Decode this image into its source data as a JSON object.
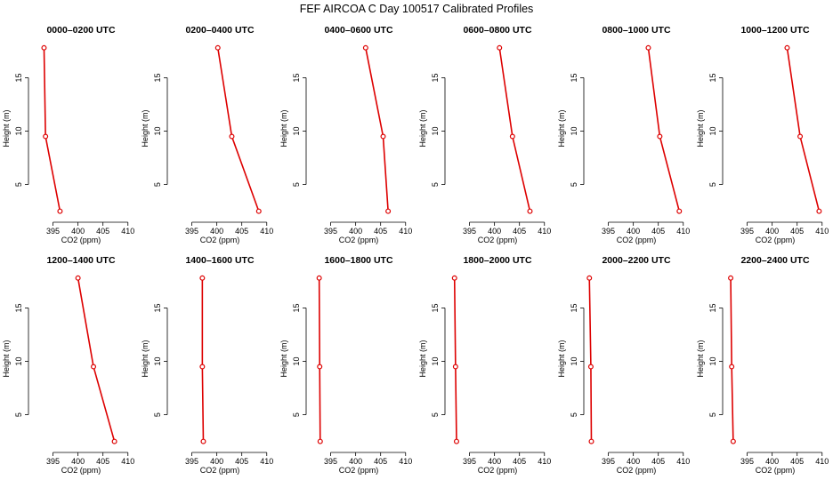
{
  "figure_title": "FEF AIRCOA C  Day 100517  Calibrated Profiles",
  "colors": {
    "line": "#dd0000",
    "axis": "#000000"
  },
  "chart_data": [
    {
      "type": "line",
      "title": "0000–0200 UTC",
      "xlabel": "CO2 (ppm)",
      "ylabel": "Height (m)",
      "xticks": [
        395,
        400,
        405,
        410
      ],
      "yticks": [
        5,
        10,
        15
      ],
      "xlim": [
        390.8,
        410.4
      ],
      "ylim": [
        1.8,
        18.7
      ],
      "series": [
        {
          "values": [
            {
              "x": 396.4,
              "y": 2.5
            },
            {
              "x": 393.5,
              "y": 9.5
            },
            {
              "x": 393.2,
              "y": 17.8
            }
          ]
        }
      ]
    },
    {
      "type": "line",
      "title": "0200–0400 UTC",
      "xlabel": "CO2 (ppm)",
      "ylabel": "Height (m)",
      "xticks": [
        395,
        400,
        405,
        410
      ],
      "yticks": [
        5,
        10,
        15
      ],
      "xlim": [
        390.8,
        410.4
      ],
      "ylim": [
        1.8,
        18.7
      ],
      "series": [
        {
          "values": [
            {
              "x": 408.4,
              "y": 2.5
            },
            {
              "x": 403.0,
              "y": 9.5
            },
            {
              "x": 400.2,
              "y": 17.8
            }
          ]
        }
      ]
    },
    {
      "type": "line",
      "title": "0400–0600 UTC",
      "xlabel": "CO2 (ppm)",
      "ylabel": "Height (m)",
      "xticks": [
        395,
        400,
        405,
        410
      ],
      "yticks": [
        5,
        10,
        15
      ],
      "xlim": [
        390.8,
        410.4
      ],
      "ylim": [
        1.8,
        18.7
      ],
      "series": [
        {
          "values": [
            {
              "x": 406.5,
              "y": 2.5
            },
            {
              "x": 405.5,
              "y": 9.5
            },
            {
              "x": 402.0,
              "y": 17.8
            }
          ]
        }
      ]
    },
    {
      "type": "line",
      "title": "0600–0800 UTC",
      "xlabel": "CO2 (ppm)",
      "ylabel": "Height (m)",
      "xticks": [
        395,
        400,
        405,
        410
      ],
      "yticks": [
        5,
        10,
        15
      ],
      "xlim": [
        390.8,
        410.4
      ],
      "ylim": [
        1.8,
        18.7
      ],
      "series": [
        {
          "values": [
            {
              "x": 407.1,
              "y": 2.5
            },
            {
              "x": 403.6,
              "y": 9.5
            },
            {
              "x": 401.0,
              "y": 17.8
            }
          ]
        }
      ]
    },
    {
      "type": "line",
      "title": "0800–1000 UTC",
      "xlabel": "CO2 (ppm)",
      "ylabel": "Height (m)",
      "xticks": [
        395,
        400,
        405,
        410
      ],
      "yticks": [
        5,
        10,
        15
      ],
      "xlim": [
        390.8,
        410.4
      ],
      "ylim": [
        1.8,
        18.7
      ],
      "series": [
        {
          "values": [
            {
              "x": 409.2,
              "y": 2.5
            },
            {
              "x": 405.3,
              "y": 9.5
            },
            {
              "x": 403.0,
              "y": 17.8
            }
          ]
        }
      ]
    },
    {
      "type": "line",
      "title": "1000–1200 UTC",
      "xlabel": "CO2 (ppm)",
      "ylabel": "Height (m)",
      "xticks": [
        395,
        400,
        405,
        410
      ],
      "yticks": [
        5,
        10,
        15
      ],
      "xlim": [
        390.8,
        410.4
      ],
      "ylim": [
        1.8,
        18.7
      ],
      "series": [
        {
          "values": [
            {
              "x": 409.4,
              "y": 2.5
            },
            {
              "x": 405.6,
              "y": 9.5
            },
            {
              "x": 403.0,
              "y": 17.8
            }
          ]
        }
      ]
    },
    {
      "type": "line",
      "title": "1200–1400 UTC",
      "xlabel": "CO2 (ppm)",
      "ylabel": "Height (m)",
      "xticks": [
        395,
        400,
        405,
        410
      ],
      "yticks": [
        5,
        10,
        15
      ],
      "xlim": [
        390.8,
        410.4
      ],
      "ylim": [
        1.8,
        18.7
      ],
      "series": [
        {
          "values": [
            {
              "x": 407.3,
              "y": 2.5
            },
            {
              "x": 403.1,
              "y": 9.5
            },
            {
              "x": 400.0,
              "y": 17.8
            }
          ]
        }
      ]
    },
    {
      "type": "line",
      "title": "1400–1600 UTC",
      "xlabel": "CO2 (ppm)",
      "ylabel": "Height (m)",
      "xticks": [
        395,
        400,
        405,
        410
      ],
      "yticks": [
        5,
        10,
        15
      ],
      "xlim": [
        390.8,
        410.4
      ],
      "ylim": [
        1.8,
        18.7
      ],
      "series": [
        {
          "values": [
            {
              "x": 397.3,
              "y": 2.5
            },
            {
              "x": 397.1,
              "y": 9.5
            },
            {
              "x": 397.1,
              "y": 17.8
            }
          ]
        }
      ]
    },
    {
      "type": "line",
      "title": "1600–1800 UTC",
      "xlabel": "CO2 (ppm)",
      "ylabel": "Height (m)",
      "xticks": [
        395,
        400,
        405,
        410
      ],
      "yticks": [
        5,
        10,
        15
      ],
      "xlim": [
        390.8,
        410.4
      ],
      "ylim": [
        1.8,
        18.7
      ],
      "series": [
        {
          "values": [
            {
              "x": 392.9,
              "y": 2.5
            },
            {
              "x": 392.8,
              "y": 9.5
            },
            {
              "x": 392.7,
              "y": 17.8
            }
          ]
        }
      ]
    },
    {
      "type": "line",
      "title": "1800–2000 UTC",
      "xlabel": "CO2 (ppm)",
      "ylabel": "Height (m)",
      "xticks": [
        395,
        400,
        405,
        410
      ],
      "yticks": [
        5,
        10,
        15
      ],
      "xlim": [
        390.8,
        410.4
      ],
      "ylim": [
        1.8,
        18.7
      ],
      "series": [
        {
          "values": [
            {
              "x": 392.4,
              "y": 2.5
            },
            {
              "x": 392.2,
              "y": 9.5
            },
            {
              "x": 392.0,
              "y": 17.8
            }
          ]
        }
      ]
    },
    {
      "type": "line",
      "title": "2000–2200 UTC",
      "xlabel": "CO2 (ppm)",
      "ylabel": "Height (m)",
      "xticks": [
        395,
        400,
        405,
        410
      ],
      "yticks": [
        5,
        10,
        15
      ],
      "xlim": [
        390.8,
        410.4
      ],
      "ylim": [
        1.8,
        18.7
      ],
      "series": [
        {
          "values": [
            {
              "x": 391.6,
              "y": 2.5
            },
            {
              "x": 391.5,
              "y": 9.5
            },
            {
              "x": 391.2,
              "y": 17.8
            }
          ]
        }
      ]
    },
    {
      "type": "line",
      "title": "2200–2400 UTC",
      "xlabel": "CO2 (ppm)",
      "ylabel": "Height (m)",
      "xticks": [
        395,
        400,
        405,
        410
      ],
      "yticks": [
        5,
        10,
        15
      ],
      "xlim": [
        390.8,
        410.4
      ],
      "ylim": [
        1.8,
        18.7
      ],
      "series": [
        {
          "values": [
            {
              "x": 392.2,
              "y": 2.5
            },
            {
              "x": 391.9,
              "y": 9.5
            },
            {
              "x": 391.7,
              "y": 17.8
            }
          ]
        }
      ]
    }
  ]
}
